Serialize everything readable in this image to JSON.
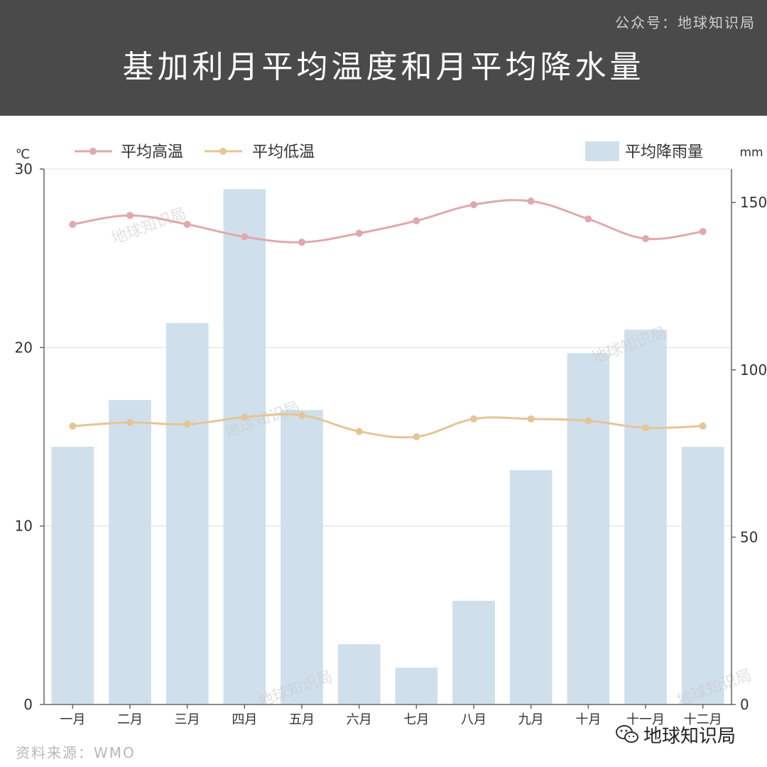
{
  "header": {
    "title": "基加利月平均温度和月平均降水量",
    "source_top": "公众号：地球知识局"
  },
  "footer": {
    "source": "资料来源：WMO",
    "brand": "地球知识局"
  },
  "watermark": "地球知识局",
  "chart_data": {
    "type": "bar",
    "categories": [
      "一月",
      "二月",
      "三月",
      "四月",
      "五月",
      "六月",
      "七月",
      "八月",
      "九月",
      "十月",
      "十一月",
      "十二月"
    ],
    "series": [
      {
        "name": "平均降雨量",
        "type": "bar",
        "axis": "right",
        "unit": "mm",
        "values": [
          77,
          91,
          114,
          154,
          88,
          18,
          11,
          31,
          70,
          105,
          112,
          77
        ]
      },
      {
        "name": "平均高温",
        "type": "line",
        "axis": "left",
        "unit": "℃",
        "values": [
          26.9,
          27.4,
          26.9,
          26.2,
          25.9,
          26.4,
          27.1,
          28.0,
          28.2,
          27.2,
          26.1,
          26.5
        ]
      },
      {
        "name": "平均低温",
        "type": "line",
        "axis": "left",
        "unit": "℃",
        "values": [
          15.6,
          15.8,
          15.7,
          16.1,
          16.2,
          15.3,
          15.0,
          16.0,
          16.0,
          15.9,
          15.5,
          15.6
        ]
      }
    ],
    "left_axis": {
      "unit": "℃",
      "ylim": [
        0,
        30
      ],
      "ticks": [
        0,
        10,
        20,
        30
      ]
    },
    "right_axis": {
      "unit": "mm",
      "ylim": [
        0,
        160
      ],
      "ticks": [
        0,
        50,
        100,
        150
      ]
    },
    "grid": true,
    "legend_placement": "top",
    "colors": {
      "bar": "#cfe0ec",
      "high": "#e0a9ad",
      "low": "#e5c597",
      "axis": "#666666",
      "grid": "#dddddd"
    }
  }
}
